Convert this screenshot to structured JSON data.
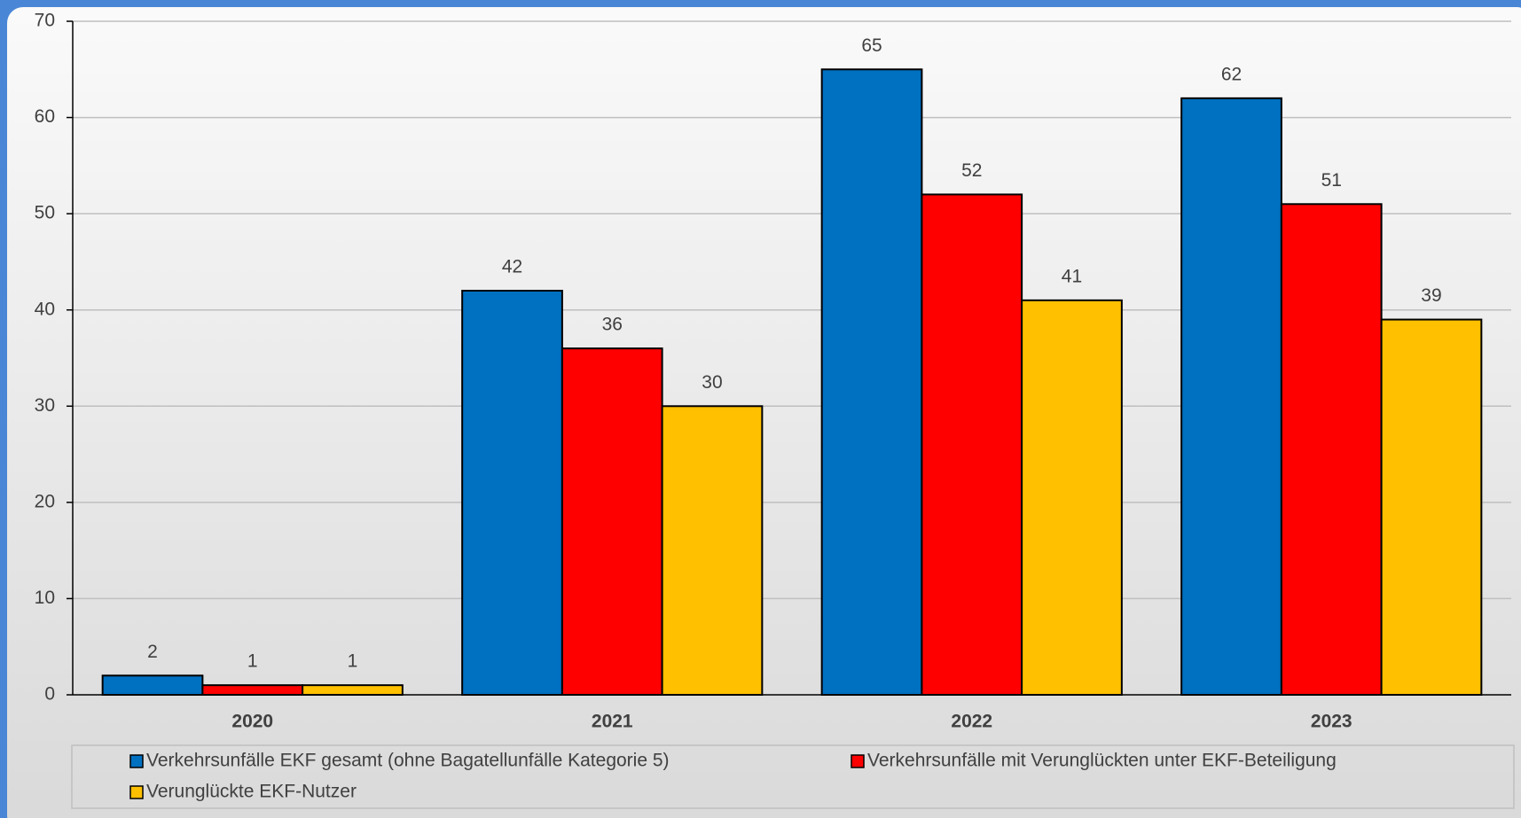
{
  "chart_data": {
    "type": "bar",
    "categories": [
      "2020",
      "2021",
      "2022",
      "2023"
    ],
    "series": [
      {
        "name": "Verkehrsunfälle EKF gesamt (ohne Bagatellunfälle Kategorie 5)",
        "color": "#0070c0",
        "values": [
          2,
          42,
          65,
          62
        ]
      },
      {
        "name": "Verkehrsunfälle mit Verunglückten unter EKF-Beteiligung",
        "color": "#ff0000",
        "values": [
          1,
          36,
          52,
          51
        ]
      },
      {
        "name": "Verunglückte EKF-Nutzer",
        "color": "#ffc000",
        "values": [
          1,
          30,
          41,
          39
        ]
      }
    ],
    "ylim": [
      0,
      70
    ],
    "yticks": [
      0,
      10,
      20,
      30,
      40,
      50,
      60,
      70
    ],
    "grid": true,
    "legend": "bottom"
  }
}
